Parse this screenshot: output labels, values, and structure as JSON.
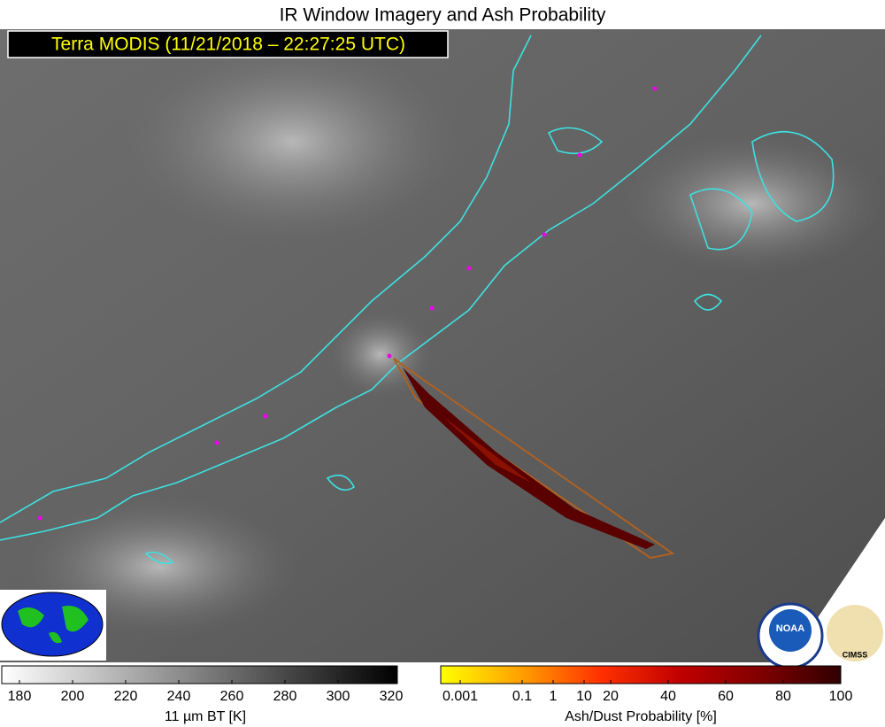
{
  "title": "IR Window Imagery and Ash Probability",
  "subtitle": "Terra MODIS (11/21/2018 – 22:27:25 UTC)",
  "colorbars": [
    {
      "label": "11 µm BT [K]",
      "ticks": [
        180,
        200,
        220,
        240,
        260,
        280,
        300,
        320
      ],
      "colors": [
        "#ffffff",
        "#000000"
      ]
    },
    {
      "label": "Ash/Dust Probability [%]",
      "ticks": [
        0.001,
        0.1,
        1,
        10,
        20,
        40,
        60,
        80,
        100
      ],
      "colors": [
        "#ffff00",
        "#ffa000",
        "#ff3000",
        "#c00000",
        "#800000",
        "#300000"
      ]
    }
  ],
  "logos": [
    "NOAA",
    "CIMSS"
  ]
}
